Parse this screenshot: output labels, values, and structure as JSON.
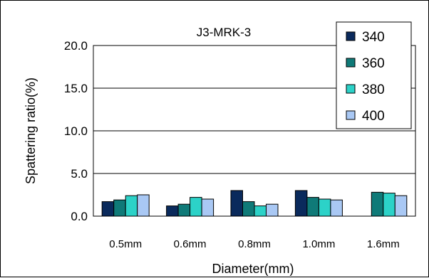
{
  "chart_data": {
    "type": "bar",
    "title": "J3-MRK-3",
    "xlabel": "Diameter(mm)",
    "ylabel": "Spattering ratio(%)",
    "categories": [
      "0.5mm",
      "0.6mm",
      "0.8mm",
      "1.0mm",
      "1.6mm"
    ],
    "series": [
      {
        "name": "340",
        "color": "#0a2a5c",
        "values": [
          1.7,
          1.2,
          3.0,
          3.0,
          0.0
        ]
      },
      {
        "name": "360",
        "color": "#0f7a78",
        "values": [
          1.9,
          1.4,
          1.7,
          2.2,
          2.8
        ]
      },
      {
        "name": "380",
        "color": "#2cd2c8",
        "values": [
          2.4,
          2.2,
          1.2,
          2.0,
          2.7
        ]
      },
      {
        "name": "400",
        "color": "#a9c8f4",
        "values": [
          2.5,
          2.0,
          1.4,
          1.9,
          2.4
        ]
      }
    ],
    "ylim": [
      0,
      20
    ],
    "yticks": [
      "0.0",
      "5.0",
      "10.0",
      "15.0",
      "20.0"
    ],
    "grid": true,
    "legend": "top-right"
  }
}
